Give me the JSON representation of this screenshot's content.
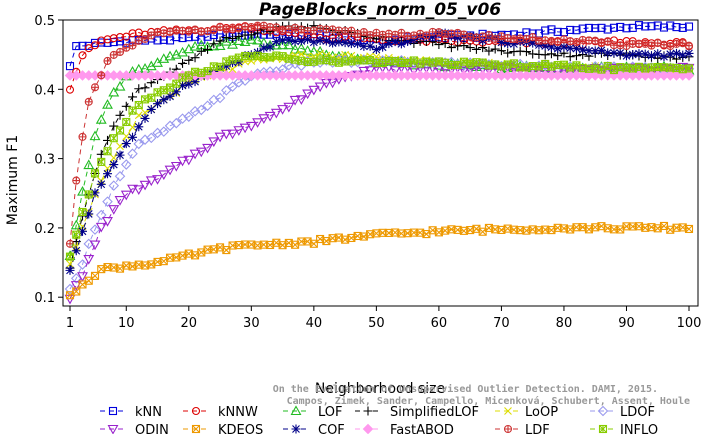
{
  "chart_data": {
    "type": "line",
    "title": "PageBlocks_norm_05_v06",
    "xlabel": "Neighborhood size",
    "ylabel": "Maximum F1",
    "xlim": [
      1,
      100
    ],
    "ylim": [
      0.09,
      0.5
    ],
    "x_ticks": [
      1,
      10,
      20,
      30,
      40,
      50,
      60,
      70,
      80,
      90,
      100
    ],
    "y_ticks": [
      0.1,
      0.2,
      0.3,
      0.4,
      0.5
    ],
    "grid": false,
    "legend_position": "bottom",
    "credit_line1": "Campos, Zimek, Sander, Campello, Micenková, Schubert, Assent, Houle",
    "credit_line2": "On the Evaluation of Unsupervised Outlier Detection. DAMI, 2015.",
    "series": [
      {
        "name": "kNN",
        "color": "#0000dd",
        "marker": "square",
        "dash": "5,4",
        "knots": [
          [
            1,
            0.432
          ],
          [
            2,
            0.462
          ],
          [
            10,
            0.47
          ],
          [
            20,
            0.473
          ],
          [
            30,
            0.48
          ],
          [
            40,
            0.478
          ],
          [
            50,
            0.47
          ],
          [
            60,
            0.475
          ],
          [
            70,
            0.478
          ],
          [
            80,
            0.485
          ],
          [
            90,
            0.49
          ],
          [
            100,
            0.49
          ]
        ]
      },
      {
        "name": "kNNW",
        "color": "#dd0000",
        "marker": "circle",
        "dash": "5,4",
        "knots": [
          [
            1,
            0.402
          ],
          [
            3,
            0.45
          ],
          [
            6,
            0.47
          ],
          [
            12,
            0.48
          ],
          [
            20,
            0.485
          ],
          [
            30,
            0.49
          ],
          [
            40,
            0.475
          ],
          [
            50,
            0.472
          ],
          [
            60,
            0.47
          ],
          [
            70,
            0.468
          ],
          [
            80,
            0.467
          ],
          [
            90,
            0.468
          ],
          [
            100,
            0.465
          ]
        ]
      },
      {
        "name": "LOF",
        "color": "#22bb22",
        "marker": "triangle-up",
        "dash": "5,4",
        "knots": [
          [
            1,
            0.16
          ],
          [
            3,
            0.25
          ],
          [
            5,
            0.33
          ],
          [
            7,
            0.38
          ],
          [
            10,
            0.42
          ],
          [
            15,
            0.44
          ],
          [
            20,
            0.46
          ],
          [
            30,
            0.47
          ],
          [
            40,
            0.455
          ],
          [
            50,
            0.44
          ],
          [
            60,
            0.435
          ],
          [
            70,
            0.432
          ],
          [
            80,
            0.43
          ],
          [
            90,
            0.43
          ],
          [
            100,
            0.43
          ]
        ]
      },
      {
        "name": "SimplifiedLOF",
        "color": "#000000",
        "marker": "plus",
        "dash": "5,4",
        "knots": [
          [
            1,
            0.14
          ],
          [
            3,
            0.22
          ],
          [
            5,
            0.28
          ],
          [
            8,
            0.35
          ],
          [
            12,
            0.4
          ],
          [
            20,
            0.44
          ],
          [
            25,
            0.47
          ],
          [
            30,
            0.48
          ],
          [
            35,
            0.49
          ],
          [
            40,
            0.49
          ],
          [
            50,
            0.475
          ],
          [
            60,
            0.465
          ],
          [
            70,
            0.455
          ],
          [
            80,
            0.45
          ],
          [
            90,
            0.45
          ],
          [
            100,
            0.445
          ]
        ]
      },
      {
        "name": "LoOP",
        "color": "#dddd00",
        "marker": "x",
        "dash": "5,4",
        "knots": [
          [
            1,
            0.15
          ],
          [
            3,
            0.2
          ],
          [
            5,
            0.25
          ],
          [
            8,
            0.3
          ],
          [
            12,
            0.36
          ],
          [
            20,
            0.41
          ],
          [
            30,
            0.44
          ],
          [
            40,
            0.45
          ],
          [
            50,
            0.445
          ],
          [
            60,
            0.44
          ],
          [
            70,
            0.435
          ],
          [
            80,
            0.432
          ],
          [
            90,
            0.43
          ],
          [
            100,
            0.43
          ]
        ]
      },
      {
        "name": "LDOF",
        "color": "#9999ee",
        "marker": "diamond",
        "dash": "5,4",
        "knots": [
          [
            1,
            0.11
          ],
          [
            3,
            0.15
          ],
          [
            5,
            0.2
          ],
          [
            8,
            0.26
          ],
          [
            12,
            0.32
          ],
          [
            20,
            0.36
          ],
          [
            30,
            0.42
          ],
          [
            40,
            0.44
          ],
          [
            50,
            0.44
          ],
          [
            60,
            0.438
          ],
          [
            70,
            0.435
          ],
          [
            80,
            0.432
          ],
          [
            90,
            0.43
          ],
          [
            100,
            0.428
          ]
        ]
      },
      {
        "name": "ODIN",
        "color": "#9922cc",
        "marker": "triangle-down",
        "dash": "5,4",
        "knots": [
          [
            1,
            0.1
          ],
          [
            3,
            0.13
          ],
          [
            6,
            0.2
          ],
          [
            10,
            0.25
          ],
          [
            15,
            0.27
          ],
          [
            20,
            0.3
          ],
          [
            25,
            0.33
          ],
          [
            30,
            0.35
          ],
          [
            35,
            0.37
          ],
          [
            40,
            0.4
          ],
          [
            45,
            0.42
          ],
          [
            50,
            0.43
          ],
          [
            60,
            0.43
          ],
          [
            70,
            0.43
          ],
          [
            80,
            0.428
          ],
          [
            90,
            0.428
          ],
          [
            100,
            0.43
          ]
        ]
      },
      {
        "name": "KDEOS",
        "color": "#ee9900",
        "marker": "square-x",
        "dash": "5,4",
        "knots": [
          [
            1,
            0.1
          ],
          [
            3,
            0.12
          ],
          [
            6,
            0.14
          ],
          [
            10,
            0.145
          ],
          [
            15,
            0.15
          ],
          [
            20,
            0.16
          ],
          [
            25,
            0.17
          ],
          [
            30,
            0.175
          ],
          [
            40,
            0.18
          ],
          [
            50,
            0.19
          ],
          [
            60,
            0.195
          ],
          [
            70,
            0.198
          ],
          [
            80,
            0.2
          ],
          [
            90,
            0.2
          ],
          [
            100,
            0.2
          ]
        ]
      },
      {
        "name": "COF",
        "color": "#000088",
        "marker": "asterisk",
        "dash": "5,4",
        "knots": [
          [
            1,
            0.14
          ],
          [
            5,
            0.25
          ],
          [
            10,
            0.32
          ],
          [
            15,
            0.38
          ],
          [
            20,
            0.41
          ],
          [
            25,
            0.43
          ],
          [
            30,
            0.45
          ],
          [
            35,
            0.47
          ],
          [
            40,
            0.47
          ],
          [
            50,
            0.46
          ],
          [
            60,
            0.48
          ],
          [
            70,
            0.47
          ],
          [
            80,
            0.46
          ],
          [
            90,
            0.45
          ],
          [
            100,
            0.45
          ]
        ]
      },
      {
        "name": "FastABOD",
        "color": "#ff99ee",
        "marker": "diamond-filled",
        "dash": "5,4",
        "knots": [
          [
            1,
            0.42
          ],
          [
            3,
            0.42
          ],
          [
            10,
            0.42
          ],
          [
            20,
            0.42
          ],
          [
            30,
            0.42
          ],
          [
            40,
            0.42
          ],
          [
            50,
            0.42
          ],
          [
            60,
            0.42
          ],
          [
            70,
            0.42
          ],
          [
            80,
            0.42
          ],
          [
            90,
            0.42
          ],
          [
            100,
            0.42
          ]
        ]
      },
      {
        "name": "LDF",
        "color": "#cc3333",
        "marker": "circle-plus",
        "dash": "5,4",
        "knots": [
          [
            1,
            0.18
          ],
          [
            2,
            0.27
          ],
          [
            3,
            0.33
          ],
          [
            4,
            0.38
          ],
          [
            5,
            0.4
          ],
          [
            7,
            0.44
          ],
          [
            10,
            0.46
          ],
          [
            15,
            0.48
          ],
          [
            20,
            0.485
          ],
          [
            30,
            0.49
          ],
          [
            40,
            0.485
          ],
          [
            50,
            0.48
          ],
          [
            60,
            0.48
          ],
          [
            70,
            0.475
          ],
          [
            80,
            0.47
          ],
          [
            90,
            0.465
          ],
          [
            100,
            0.465
          ]
        ]
      },
      {
        "name": "INFLO",
        "color": "#88cc00",
        "marker": "square-star",
        "dash": "5,4",
        "knots": [
          [
            1,
            0.16
          ],
          [
            3,
            0.22
          ],
          [
            5,
            0.28
          ],
          [
            8,
            0.33
          ],
          [
            12,
            0.38
          ],
          [
            20,
            0.42
          ],
          [
            30,
            0.45
          ],
          [
            40,
            0.44
          ],
          [
            50,
            0.44
          ],
          [
            60,
            0.438
          ],
          [
            70,
            0.435
          ],
          [
            80,
            0.433
          ],
          [
            90,
            0.43
          ],
          [
            100,
            0.43
          ]
        ]
      }
    ]
  }
}
